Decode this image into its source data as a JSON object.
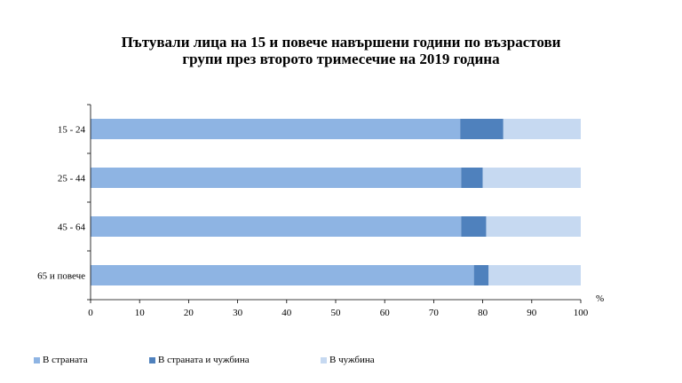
{
  "chart_data": {
    "type": "bar",
    "orientation": "horizontal",
    "stacked": true,
    "title_lines": [
      "Пътували лица на 15 и повече навършени години по възрастови",
      "групи през второто тримесечие на 2019 година"
    ],
    "categories": [
      "15 - 24",
      "25 - 44",
      "45 - 64",
      "65 и повече"
    ],
    "series": [
      {
        "name": "В страната",
        "values": [
          75.4,
          75.6,
          75.6,
          78.2
        ],
        "color": "#8eb4e3"
      },
      {
        "name": "В страната и чужбина",
        "values": [
          8.8,
          4.4,
          5.1,
          3.0
        ],
        "color": "#4f81bd"
      },
      {
        "name": "В чужбина",
        "values": [
          15.8,
          20.0,
          19.3,
          18.8
        ],
        "color": "#c6d9f1"
      }
    ],
    "x_ticks": [
      "0",
      "10",
      "20",
      "30",
      "40",
      "50",
      "60",
      "70",
      "80",
      "90",
      "100"
    ],
    "x_unit": "%",
    "xlim": [
      0,
      100
    ],
    "grid": false,
    "legend_position": "bottom"
  }
}
